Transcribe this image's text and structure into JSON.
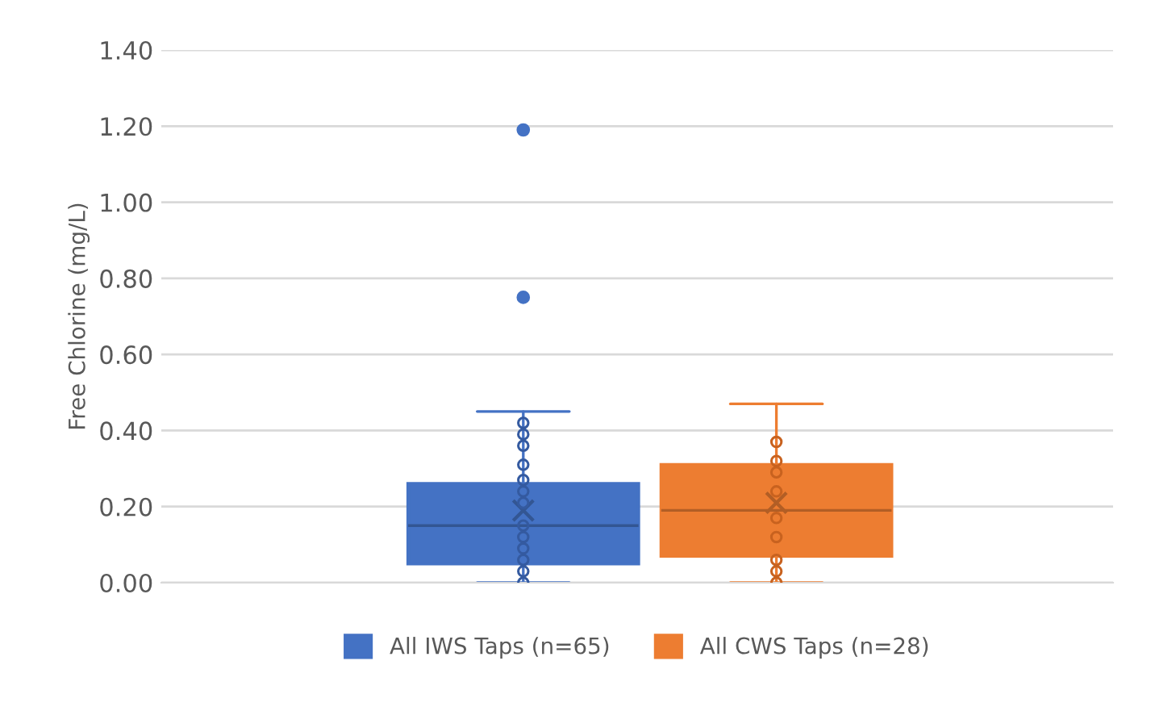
{
  "chart_data": {
    "type": "box",
    "ylabel": "Free Chlorine (mg/L)",
    "categories": [
      null
    ],
    "ylim": [
      0,
      1.4
    ],
    "yticks": [
      {
        "value": 0,
        "label": "0.00"
      },
      {
        "value": 0.2,
        "label": "0.20"
      },
      {
        "value": 0.4,
        "label": "0.40"
      },
      {
        "value": 0.6,
        "label": "0.60"
      },
      {
        "value": 0.8,
        "label": "0.80"
      },
      {
        "value": 1.0,
        "label": "1.00"
      },
      {
        "value": 1.2,
        "label": "1.20"
      },
      {
        "value": 1.4,
        "label": "1.40"
      }
    ],
    "grid": "y",
    "legend": "bottom",
    "series": [
      {
        "name": "All IWS Taps (n=65)",
        "color": "#4472c4",
        "boxes": [
          {
            "low": 0,
            "q1": 0.05,
            "median": 0.15,
            "q3": 0.26,
            "high": 0.45,
            "mean": 0.19,
            "outliers": [
              0.75,
              1.19
            ]
          }
        ]
      },
      {
        "name": "All CWS Taps (n=28)",
        "color": "#ed7d31",
        "boxes": [
          {
            "low": 0,
            "q1": 0.07,
            "median": 0.19,
            "q3": 0.31,
            "high": 0.47,
            "mean": 0.21
          }
        ]
      },
      {
        "type": "scatter",
        "color": "#345aa0",
        "x": [
          null,
          null,
          null,
          null,
          null,
          null,
          null,
          null,
          null,
          null,
          null,
          null,
          null
        ],
        "values": [
          0.42,
          0.39,
          0.36,
          0.31,
          0.27,
          0.24,
          0.21,
          0.15,
          0.12,
          0.09,
          0.06,
          0.03,
          0.0
        ]
      },
      {
        "type": "scatter",
        "color": "#c8621f",
        "x": [
          null,
          null,
          null,
          null,
          null,
          null,
          null,
          null,
          null
        ],
        "values": [
          0.37,
          0.32,
          0.29,
          0.24,
          0.17,
          0.12,
          0.06,
          0.03,
          0.0
        ]
      }
    ]
  }
}
